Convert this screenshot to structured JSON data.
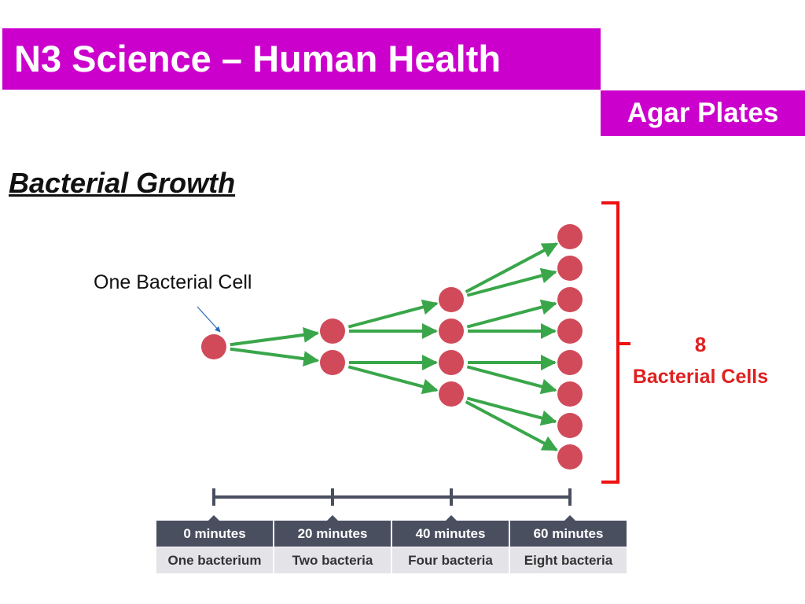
{
  "header": {
    "title": "N3 Science – Human Health",
    "subtitle": "Agar Plates"
  },
  "section": {
    "heading": "Bacterial Growth"
  },
  "diagram": {
    "start_label": "One Bacterial Cell",
    "result_count": "8",
    "result_label": "Bacterial Cells",
    "colors": {
      "cell": "#d14a5a",
      "arrow": "#3aa64a",
      "bracket": "#ee1111",
      "timeline": "#4a4f60"
    },
    "generations": [
      1,
      2,
      4,
      8
    ]
  },
  "timeline": [
    {
      "time": "0 minutes",
      "description": "One bacterium"
    },
    {
      "time": "20 minutes",
      "description": "Two bacteria"
    },
    {
      "time": "40 minutes",
      "description": "Four bacteria"
    },
    {
      "time": "60 minutes",
      "description": "Eight bacteria"
    }
  ]
}
